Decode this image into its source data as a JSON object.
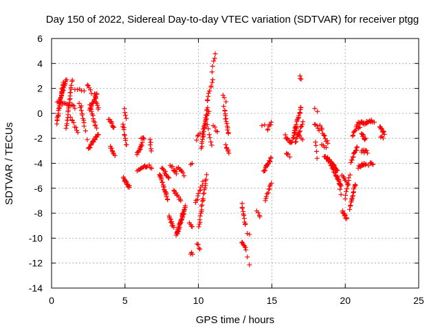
{
  "chart_data": {
    "type": "scatter",
    "title": "Day 150 of 2022, Sidereal Day-to-day VTEC variation (SDTVAR) for receiver ptgg",
    "xlabel": "GPS time / hours",
    "ylabel": "SDTVAR / TECUs",
    "xlim": [
      0,
      25
    ],
    "ylim": [
      -14,
      6
    ],
    "xticks": [
      0,
      5,
      10,
      15,
      20,
      25
    ],
    "yticks": [
      -14,
      -12,
      -10,
      -8,
      -6,
      -4,
      -2,
      0,
      2,
      4,
      6
    ],
    "grid": true,
    "marker": "+",
    "color": "#ff0000",
    "segments": [
      {
        "x0": 0.35,
        "x1": 0.8,
        "y0": -0.8,
        "y1": 2.5,
        "n": 28
      },
      {
        "x0": 0.5,
        "x1": 1.0,
        "y0": 0.8,
        "y1": 2.7,
        "n": 20
      },
      {
        "x0": 0.4,
        "x1": 1.6,
        "y0": 0.9,
        "y1": 0.5,
        "n": 14
      },
      {
        "x0": 1.0,
        "x1": 1.4,
        "y0": -1.2,
        "y1": 2.7,
        "n": 22
      },
      {
        "x0": 1.3,
        "x1": 1.8,
        "y0": -0.3,
        "y1": -1.6,
        "n": 8
      },
      {
        "x0": 1.6,
        "x1": 2.2,
        "y0": 1.9,
        "y1": 1.9,
        "n": 5
      },
      {
        "x0": 1.9,
        "x1": 2.2,
        "y0": 0.8,
        "y1": -0.7,
        "n": 6
      },
      {
        "x0": 2.0,
        "x1": 2.4,
        "y0": 0.5,
        "y1": -2.0,
        "n": 6
      },
      {
        "x0": 2.45,
        "x1": 2.7,
        "y0": 2.3,
        "y1": 1.6,
        "n": 5
      },
      {
        "x0": 2.5,
        "x1": 3.2,
        "y0": -2.9,
        "y1": -1.6,
        "n": 18
      },
      {
        "x0": 2.6,
        "x1": 3.1,
        "y0": 0.3,
        "y1": 1.6,
        "n": 16
      },
      {
        "x0": 2.6,
        "x1": 3.05,
        "y0": 0.6,
        "y1": -1.2,
        "n": 12
      },
      {
        "x0": 2.9,
        "x1": 3.2,
        "y0": 1.5,
        "y1": 0.3,
        "n": 8
      },
      {
        "x0": 3.9,
        "x1": 4.25,
        "y0": -0.4,
        "y1": -1.2,
        "n": 10
      },
      {
        "x0": 4.0,
        "x1": 4.3,
        "y0": -2.6,
        "y1": -3.3,
        "n": 8
      },
      {
        "x0": 4.9,
        "x1": 5.3,
        "y0": -5.2,
        "y1": -5.9,
        "n": 14
      },
      {
        "x0": 4.85,
        "x1": 5.1,
        "y0": -0.8,
        "y1": -2.6,
        "n": 10
      },
      {
        "x0": 4.95,
        "x1": 5.1,
        "y0": 0.3,
        "y1": -0.4,
        "n": 4
      },
      {
        "x0": 5.8,
        "x1": 6.2,
        "y0": -3.3,
        "y1": -2.4,
        "n": 12
      },
      {
        "x0": 5.85,
        "x1": 6.5,
        "y0": -4.5,
        "y1": -4.2,
        "n": 12
      },
      {
        "x0": 6.1,
        "x1": 6.3,
        "y0": -1.9,
        "y1": -2.1,
        "n": 4
      },
      {
        "x0": 6.7,
        "x1": 6.8,
        "y0": -2.0,
        "y1": -3.0,
        "n": 5
      },
      {
        "x0": 6.65,
        "x1": 6.8,
        "y0": -4.2,
        "y1": -4.3,
        "n": 3
      },
      {
        "x0": 7.35,
        "x1": 7.9,
        "y0": -4.8,
        "y1": -6.9,
        "n": 22
      },
      {
        "x0": 7.5,
        "x1": 8.0,
        "y0": -4.4,
        "y1": -5.2,
        "n": 12
      },
      {
        "x0": 8.0,
        "x1": 8.3,
        "y0": -8.2,
        "y1": -9.2,
        "n": 10
      },
      {
        "x0": 8.1,
        "x1": 8.5,
        "y0": -4.2,
        "y1": -4.8,
        "n": 8
      },
      {
        "x0": 8.3,
        "x1": 8.8,
        "y0": -6.2,
        "y1": -7.0,
        "n": 10
      },
      {
        "x0": 8.5,
        "x1": 9.1,
        "y0": -9.8,
        "y1": -7.4,
        "n": 30
      },
      {
        "x0": 8.55,
        "x1": 9.0,
        "y0": -4.3,
        "y1": -4.9,
        "n": 8
      },
      {
        "x0": 8.6,
        "x1": 9.0,
        "y0": -9.5,
        "y1": -8.0,
        "n": 12
      },
      {
        "x0": 9.4,
        "x1": 9.6,
        "y0": -8.8,
        "y1": -9.1,
        "n": 4
      },
      {
        "x0": 9.45,
        "x1": 9.6,
        "y0": -11.2,
        "y1": -11.3,
        "n": 3
      },
      {
        "x0": 9.5,
        "x1": 9.6,
        "y0": -4.1,
        "y1": -4.1,
        "n": 2
      },
      {
        "x0": 9.9,
        "x1": 10.1,
        "y0": -2.1,
        "y1": -1.5,
        "n": 4
      },
      {
        "x0": 9.8,
        "x1": 10.3,
        "y0": -7.2,
        "y1": -5.5,
        "n": 10
      },
      {
        "x0": 9.9,
        "x1": 10.1,
        "y0": -10.5,
        "y1": -10.8,
        "n": 4
      },
      {
        "x0": 10.05,
        "x1": 10.55,
        "y0": -9.0,
        "y1": -5.0,
        "n": 22
      },
      {
        "x0": 10.2,
        "x1": 10.6,
        "y0": -2.8,
        "y1": 0.5,
        "n": 20
      },
      {
        "x0": 10.3,
        "x1": 10.7,
        "y0": -1.5,
        "y1": 0.2,
        "n": 10
      },
      {
        "x0": 10.6,
        "x1": 10.95,
        "y0": 1.0,
        "y1": 2.6,
        "n": 10
      },
      {
        "x0": 10.6,
        "x1": 10.9,
        "y0": -1.0,
        "y1": -2.5,
        "n": 6
      },
      {
        "x0": 10.9,
        "x1": 11.15,
        "y0": 3.4,
        "y1": 4.8,
        "n": 5
      },
      {
        "x0": 11.0,
        "x1": 11.3,
        "y0": -1.0,
        "y1": -1.5,
        "n": 4
      },
      {
        "x0": 11.7,
        "x1": 11.85,
        "y0": 1.4,
        "y1": 0.9,
        "n": 3
      },
      {
        "x0": 11.75,
        "x1": 12.05,
        "y0": 0.5,
        "y1": -1.7,
        "n": 14
      },
      {
        "x0": 11.85,
        "x1": 12.1,
        "y0": -2.5,
        "y1": -3.2,
        "n": 6
      },
      {
        "x0": 12.95,
        "x1": 13.2,
        "y0": -7.3,
        "y1": -9.0,
        "n": 10
      },
      {
        "x0": 12.95,
        "x1": 13.25,
        "y0": -10.3,
        "y1": -10.9,
        "n": 8
      },
      {
        "x0": 13.35,
        "x1": 13.45,
        "y0": -9.6,
        "y1": -9.7,
        "n": 2
      },
      {
        "x0": 13.35,
        "x1": 13.45,
        "y0": -11.4,
        "y1": -12.1,
        "n": 2
      },
      {
        "x0": 14.0,
        "x1": 14.2,
        "y0": -7.9,
        "y1": -8.3,
        "n": 4
      },
      {
        "x0": 14.3,
        "x1": 14.5,
        "y0": -1.0,
        "y1": -0.9,
        "n": 2
      },
      {
        "x0": 14.45,
        "x1": 14.95,
        "y0": -4.7,
        "y1": -3.6,
        "n": 16
      },
      {
        "x0": 14.55,
        "x1": 14.95,
        "y0": -6.9,
        "y1": -5.6,
        "n": 10
      },
      {
        "x0": 14.7,
        "x1": 14.95,
        "y0": -1.3,
        "y1": -0.7,
        "n": 6
      },
      {
        "x0": 15.9,
        "x1": 16.3,
        "y0": -1.8,
        "y1": -2.4,
        "n": 8
      },
      {
        "x0": 16.0,
        "x1": 16.2,
        "y0": -3.2,
        "y1": -3.4,
        "n": 4
      },
      {
        "x0": 16.3,
        "x1": 16.7,
        "y0": -2.4,
        "y1": -1.2,
        "n": 8
      },
      {
        "x0": 16.5,
        "x1": 17.0,
        "y0": -1.6,
        "y1": 0.5,
        "n": 20
      },
      {
        "x0": 16.6,
        "x1": 17.1,
        "y0": -2.3,
        "y1": -0.7,
        "n": 14
      },
      {
        "x0": 16.9,
        "x1": 17.0,
        "y0": 2.9,
        "y1": 2.7,
        "n": 3
      },
      {
        "x0": 16.8,
        "x1": 17.1,
        "y0": -1.8,
        "y1": -2.0,
        "n": 4
      },
      {
        "x0": 17.9,
        "x1": 18.1,
        "y0": 0.3,
        "y1": 0.2,
        "n": 2
      },
      {
        "x0": 17.9,
        "x1": 18.2,
        "y0": -0.8,
        "y1": -1.3,
        "n": 5
      },
      {
        "x0": 18.0,
        "x1": 18.1,
        "y0": -2.2,
        "y1": -3.5,
        "n": 4
      },
      {
        "x0": 18.3,
        "x1": 18.8,
        "y0": -1.0,
        "y1": -2.4,
        "n": 12
      },
      {
        "x0": 18.4,
        "x1": 18.7,
        "y0": -2.5,
        "y1": -2.7,
        "n": 4
      },
      {
        "x0": 18.6,
        "x1": 19.5,
        "y0": -3.4,
        "y1": -4.6,
        "n": 28
      },
      {
        "x0": 19.0,
        "x1": 19.7,
        "y0": -4.0,
        "y1": -5.8,
        "n": 24
      },
      {
        "x0": 19.5,
        "x1": 19.7,
        "y0": -5.1,
        "y1": -6.4,
        "n": 5
      },
      {
        "x0": 19.8,
        "x1": 20.2,
        "y0": -5.0,
        "y1": -5.8,
        "n": 8
      },
      {
        "x0": 19.8,
        "x1": 20.1,
        "y0": -7.8,
        "y1": -8.5,
        "n": 10
      },
      {
        "x0": 20.0,
        "x1": 20.3,
        "y0": -6.8,
        "y1": -4.9,
        "n": 8
      },
      {
        "x0": 20.3,
        "x1": 20.7,
        "y0": -7.6,
        "y1": -5.6,
        "n": 16
      },
      {
        "x0": 20.4,
        "x1": 20.8,
        "y0": -3.9,
        "y1": -2.6,
        "n": 12
      },
      {
        "x0": 20.5,
        "x1": 20.8,
        "y0": -1.8,
        "y1": -1.0,
        "n": 8
      },
      {
        "x0": 20.85,
        "x1": 21.0,
        "y0": -1.0,
        "y1": -1.2,
        "n": 3
      },
      {
        "x0": 20.9,
        "x1": 21.3,
        "y0": -0.7,
        "y1": -0.8,
        "n": 10
      },
      {
        "x0": 20.9,
        "x1": 21.4,
        "y0": -4.3,
        "y1": -4.0,
        "n": 12
      },
      {
        "x0": 21.1,
        "x1": 21.4,
        "y0": -1.6,
        "y1": -2.1,
        "n": 8
      },
      {
        "x0": 21.1,
        "x1": 21.5,
        "y0": -3.0,
        "y1": -3.1,
        "n": 8
      },
      {
        "x0": 21.4,
        "x1": 21.7,
        "y0": -0.8,
        "y1": -0.6,
        "n": 8
      },
      {
        "x0": 21.6,
        "x1": 21.9,
        "y0": -4.1,
        "y1": -4.0,
        "n": 5
      },
      {
        "x0": 21.75,
        "x1": 21.95,
        "y0": -0.6,
        "y1": -0.8,
        "n": 4
      },
      {
        "x0": 22.35,
        "x1": 22.65,
        "y0": -1.0,
        "y1": -1.6,
        "n": 10
      },
      {
        "x0": 22.4,
        "x1": 22.6,
        "y0": -1.9,
        "y1": -1.9,
        "n": 3
      }
    ]
  }
}
